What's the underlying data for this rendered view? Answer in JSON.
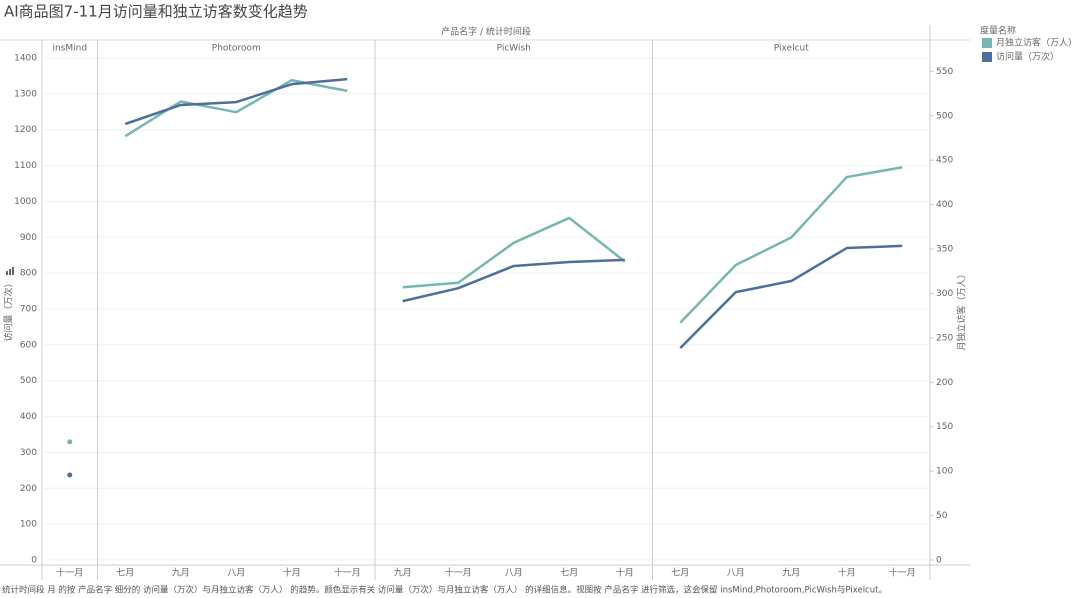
{
  "chart_data": {
    "type": "line",
    "title": "AI商品图7-11月访问量和独立访客数变化趋势",
    "facet_title": "产品名字 / 统计时间段",
    "legend_title": "度量名称",
    "ylabel": "访问量（万次）",
    "y2label": "月独立访客（万人）",
    "ylim": [
      0,
      1400
    ],
    "yticks": [
      0,
      100,
      200,
      300,
      400,
      500,
      600,
      700,
      800,
      900,
      1000,
      1100,
      1200,
      1300,
      1400
    ],
    "y2lim": [
      0,
      565
    ],
    "y2ticks": [
      0,
      50,
      100,
      150,
      200,
      250,
      300,
      350,
      400,
      450,
      500,
      550
    ],
    "grid": true,
    "series": [
      {
        "name": "月独立访客（万人）",
        "color": "#76b7b2",
        "axis": "y2"
      },
      {
        "name": "访问量（万次）",
        "color": "#4e6f9b"
      }
    ],
    "panels": [
      {
        "name": "insMind",
        "categories": [
          "十一月"
        ],
        "values": [
          [
            133
          ],
          [
            237
          ]
        ]
      },
      {
        "name": "Photoroom",
        "categories": [
          "七月",
          "九月",
          "八月",
          "十月",
          "十一月"
        ],
        "values": [
          [
            477,
            516,
            504,
            540,
            528
          ],
          [
            1216,
            1269,
            1277,
            1327,
            1341
          ]
        ]
      },
      {
        "name": "PicWish",
        "categories": [
          "九月",
          "十一月",
          "八月",
          "七月",
          "十月"
        ],
        "values": [
          [
            307,
            312,
            357,
            385,
            336
          ],
          [
            722,
            758,
            820,
            831,
            837
          ]
        ]
      },
      {
        "name": "Pixelcut",
        "categories": [
          "七月",
          "八月",
          "九月",
          "十月",
          "十一月"
        ],
        "values": [
          [
            267,
            332,
            363,
            431,
            442
          ],
          [
            591,
            747,
            778,
            870,
            876
          ]
        ]
      }
    ],
    "footnote": "统计时间段 月 的按 产品名字 细分的 访问量（万次）与月独立访客（万人） 的趋势。颜色显示有关 访问量（万次）与月独立访客（万人） 的详细信息。视图按 产品名字 进行筛选，这会保留 insMind,Photoroom,PicWish与Pixelcut。"
  }
}
